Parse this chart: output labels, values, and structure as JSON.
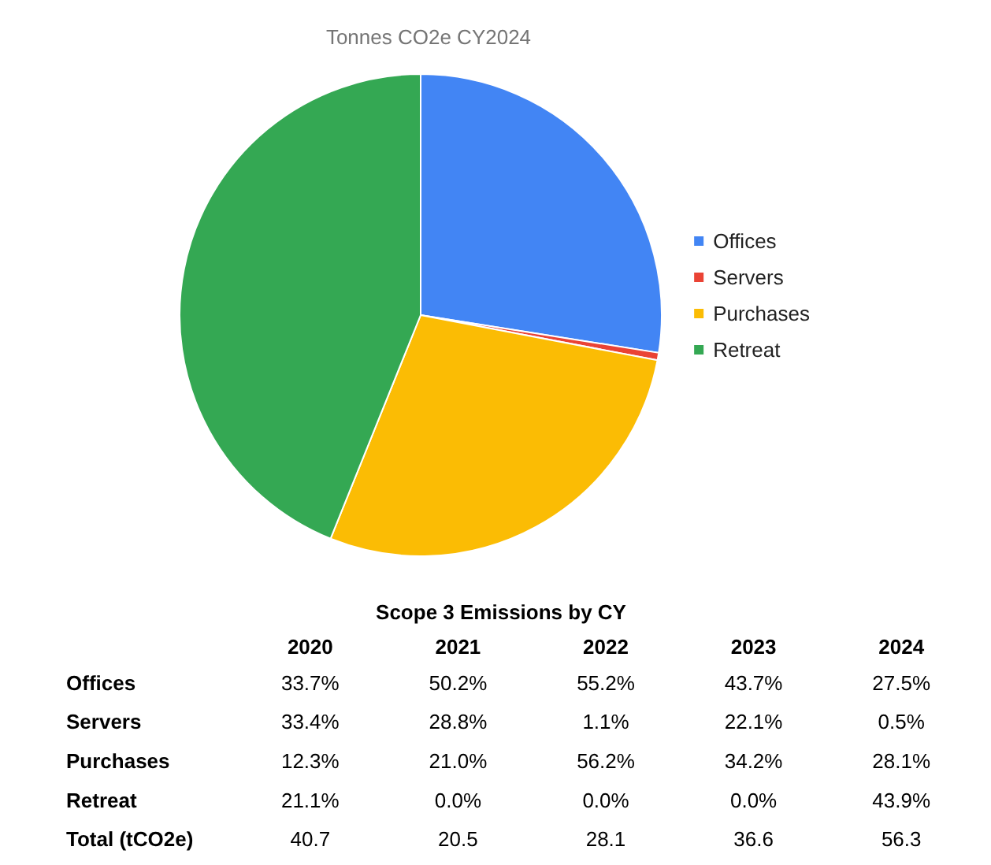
{
  "chart_data": [
    {
      "type": "pie",
      "title": "Tonnes CO2e CY2024",
      "categories": [
        "Offices",
        "Servers",
        "Purchases",
        "Retreat"
      ],
      "values": [
        27.5,
        0.5,
        28.1,
        43.9
      ],
      "colors": [
        "#4285f4",
        "#ea4335",
        "#fbbc04",
        "#34a853"
      ],
      "legend": "right"
    },
    {
      "type": "heatmap",
      "title": "Scope 3 Emissions by CY",
      "categories": [
        "2020",
        "2021",
        "2022",
        "2023",
        "2024"
      ],
      "y_categories": [
        "Offices",
        "Servers",
        "Purchases",
        "Retreat",
        "Total (tCO2e)"
      ],
      "cells": [
        [
          33.7,
          50.2,
          55.2,
          43.7,
          27.5
        ],
        [
          33.4,
          28.8,
          1.1,
          22.1,
          0.5
        ],
        [
          12.3,
          21.0,
          56.2,
          34.2,
          28.1
        ],
        [
          21.1,
          0.0,
          0.0,
          0.0,
          43.9
        ],
        [
          40.7,
          20.5,
          28.1,
          36.6,
          56.3
        ]
      ],
      "cell_labels": [
        [
          "33.7%",
          "50.2%",
          "55.2%",
          "43.7%",
          "27.5%"
        ],
        [
          "33.4%",
          "28.8%",
          "1.1%",
          "22.1%",
          "0.5%"
        ],
        [
          "12.3%",
          "21.0%",
          "56.2%",
          "34.2%",
          "28.1%"
        ],
        [
          "21.1%",
          "0.0%",
          "0.0%",
          "0.0%",
          "43.9%"
        ],
        [
          "40.7",
          "20.5",
          "28.1",
          "36.6",
          "56.3"
        ]
      ]
    }
  ]
}
